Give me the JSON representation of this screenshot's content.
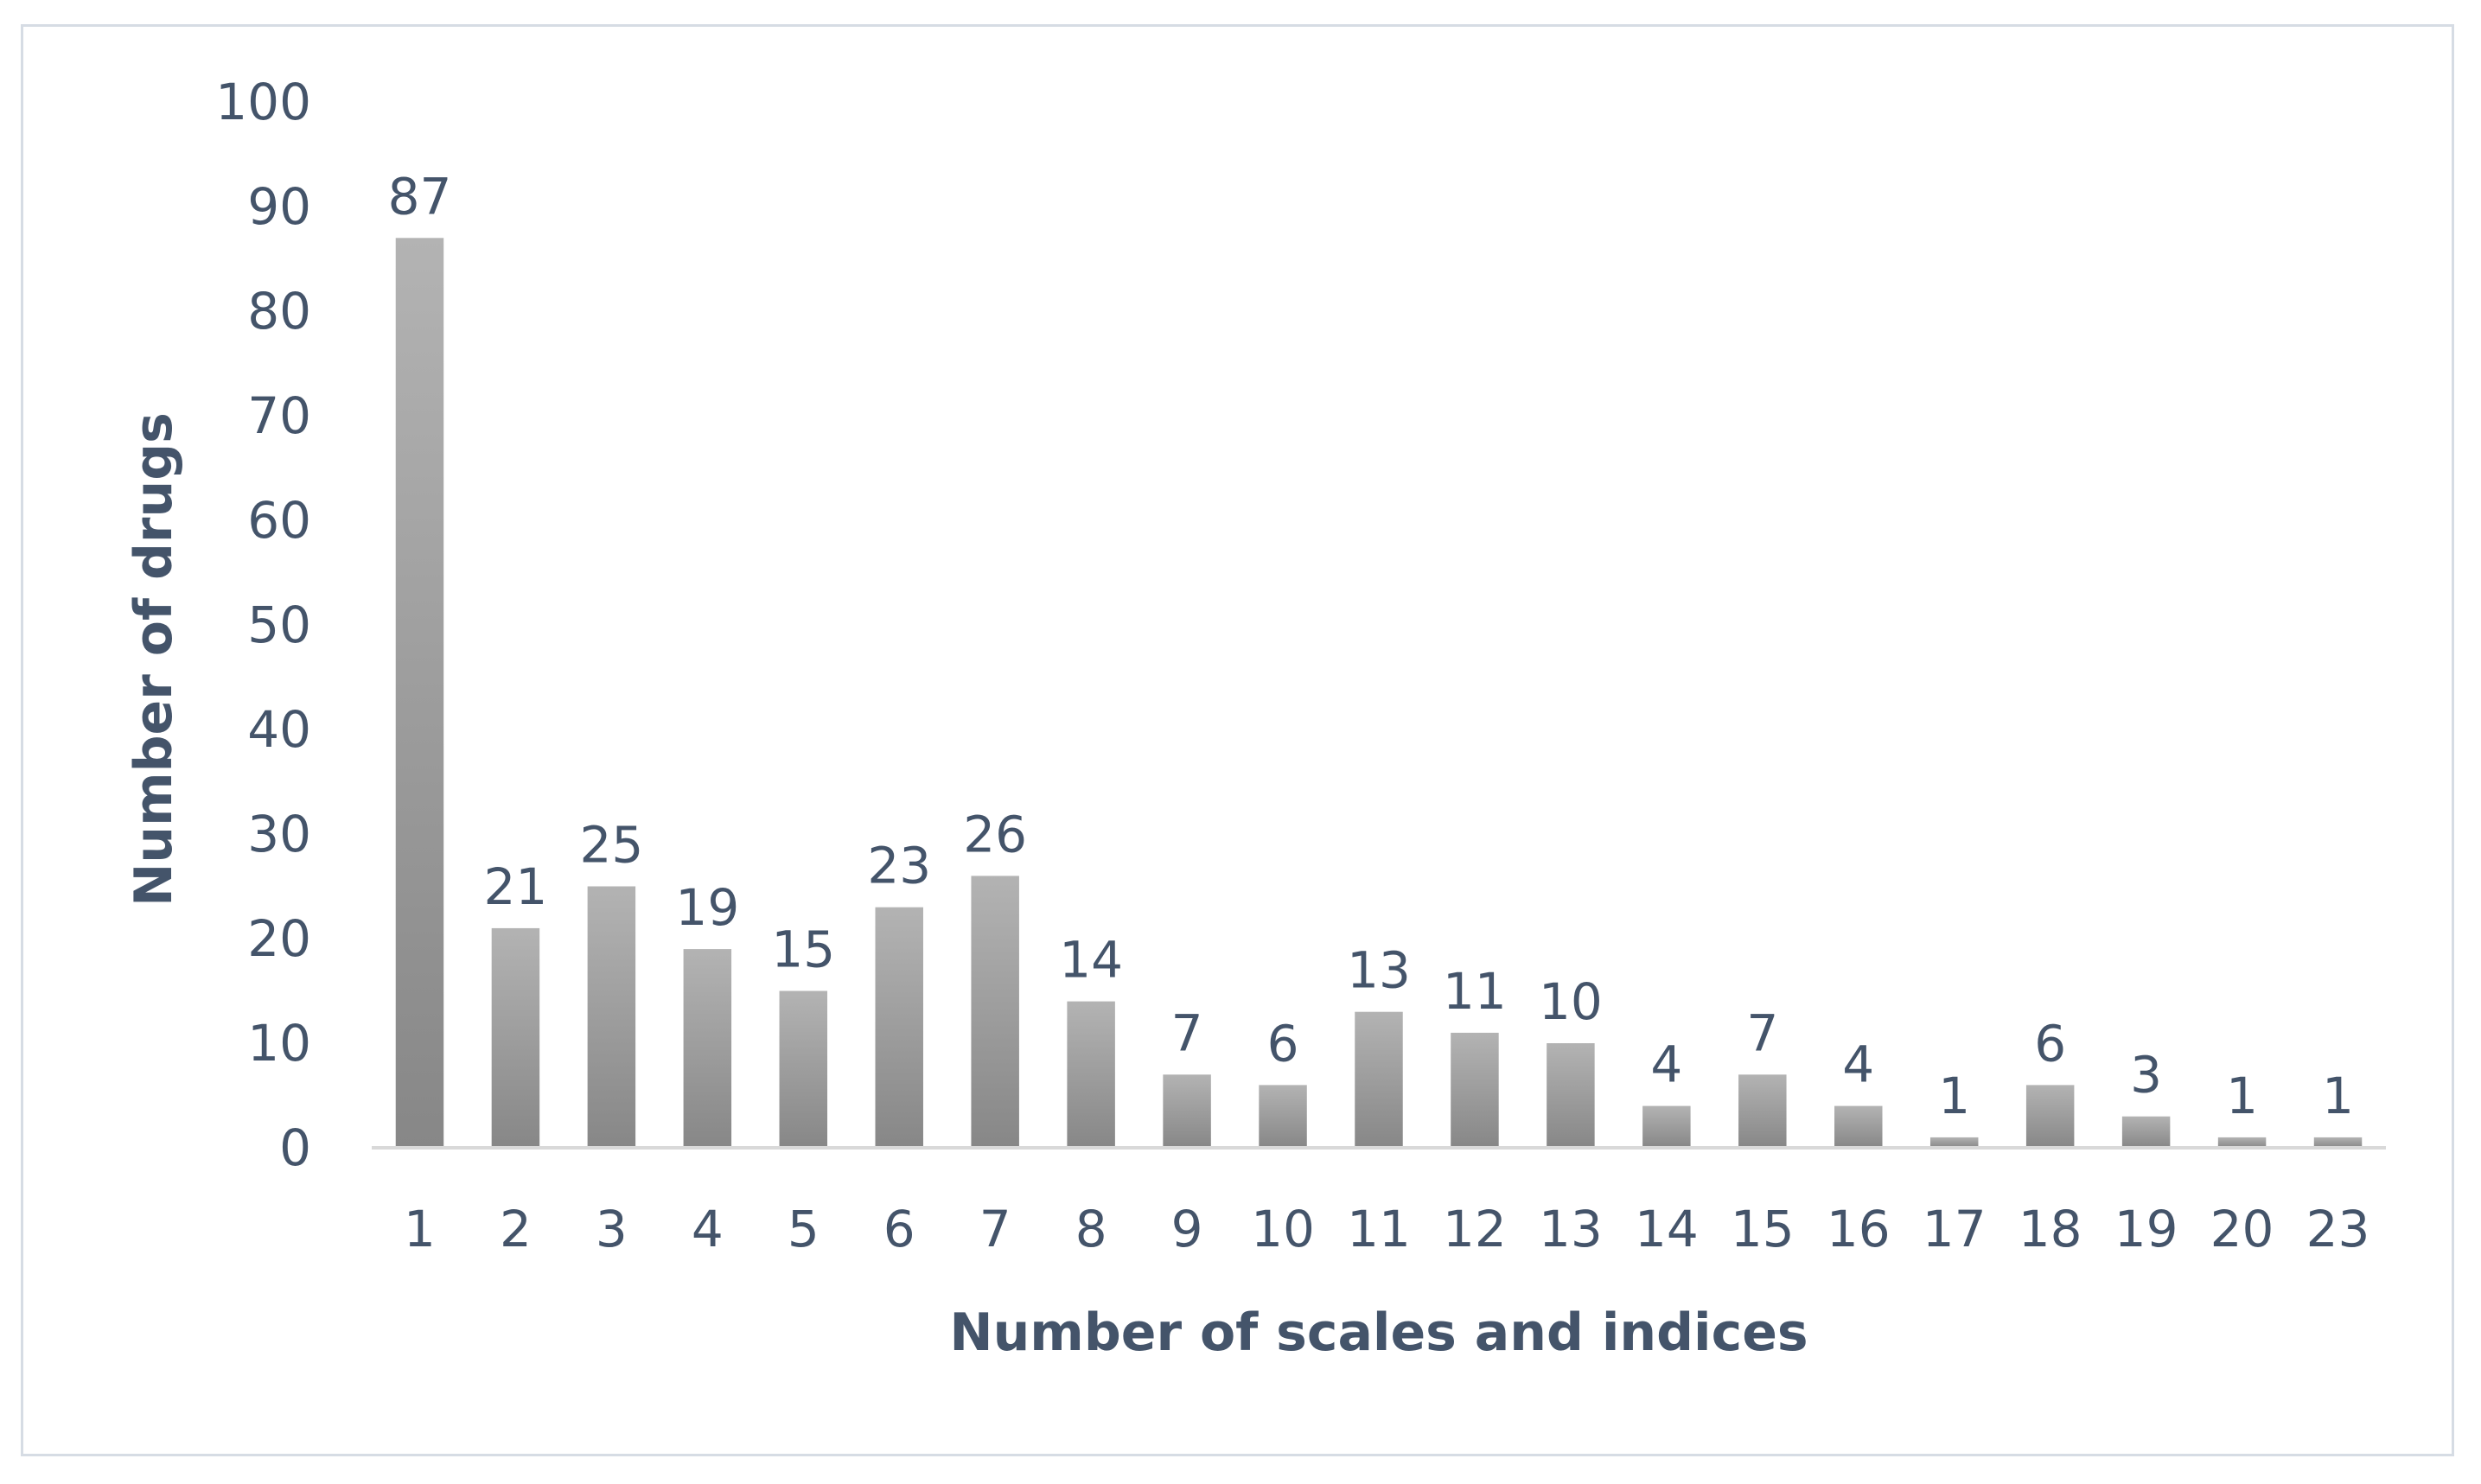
{
  "chart_data": {
    "type": "bar",
    "title": "",
    "xlabel": "Number of scales and indices",
    "ylabel": "Number of drugs",
    "categories": [
      "1",
      "2",
      "3",
      "4",
      "5",
      "6",
      "7",
      "8",
      "9",
      "10",
      "11",
      "12",
      "13",
      "14",
      "15",
      "16",
      "17",
      "18",
      "19",
      "20",
      "23"
    ],
    "values": [
      87,
      21,
      25,
      19,
      15,
      23,
      26,
      14,
      7,
      6,
      13,
      11,
      10,
      4,
      7,
      4,
      1,
      6,
      3,
      1,
      1
    ],
    "ylim": [
      0,
      100
    ],
    "yticks": [
      0,
      10,
      20,
      30,
      40,
      50,
      60,
      70,
      80,
      90,
      100
    ],
    "grid": false,
    "legend": "none",
    "data_labels": true,
    "colors": {
      "bar_light": "#b3b3b3",
      "bar_dark": "#878787",
      "text": "#44546a",
      "axis": "#d9d9d9",
      "frame": "#d6dce4"
    }
  }
}
